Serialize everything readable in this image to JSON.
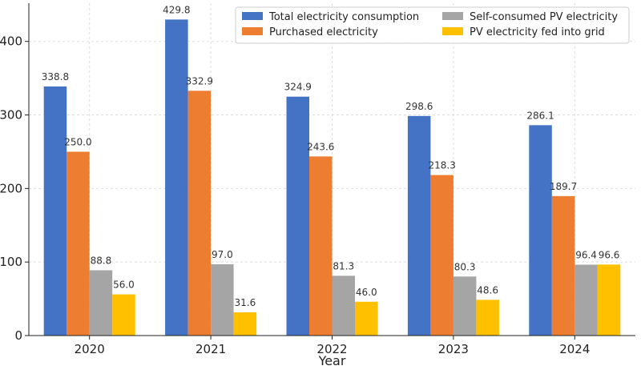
{
  "chart_data": {
    "type": "bar",
    "categories": [
      "2020",
      "2021",
      "2022",
      "2023",
      "2024"
    ],
    "series": [
      {
        "name": "Total electricity consumption",
        "values": [
          338.8,
          429.8,
          324.9,
          298.6,
          286.1
        ],
        "color": "#4472C4"
      },
      {
        "name": "Purchased electricity",
        "values": [
          250.0,
          332.9,
          243.6,
          218.3,
          189.7
        ],
        "color": "#ED7D31"
      },
      {
        "name": "Self-consumed PV electricity",
        "values": [
          88.8,
          97.0,
          81.3,
          80.3,
          96.4
        ],
        "color": "#A5A5A5"
      },
      {
        "name": "PV electricity fed into grid",
        "values": [
          56.0,
          31.6,
          46.0,
          48.6,
          96.6
        ],
        "color": "#FFC000"
      }
    ],
    "title": "",
    "xlabel": "Year",
    "ylabel": "",
    "ylim": [
      0,
      452
    ],
    "yticks": [
      0,
      100,
      200,
      300,
      400
    ],
    "grid": true,
    "legend_position": "top-right",
    "legend_columns": 2
  }
}
